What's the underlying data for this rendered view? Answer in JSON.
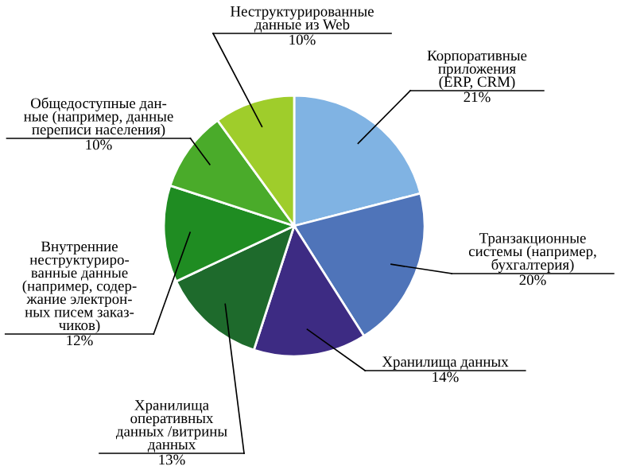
{
  "chart_data": {
    "type": "pie",
    "categories": [
      "Корпоративные\nприложения\n(ERP, CRM)",
      "Транзакционные\nсистемы (например,\nбухгалтерия)",
      "Хранилища данных",
      "Хранилища\nоперативных\nданных /витрины\nданных",
      "Внутренние\nнеструктуриро-\nванные данные\n(например, содер-\nжание электрон-\nных писем заказ-\nчиков)",
      "Общедоступные дан-\nные (например, данные\nпереписи населения)",
      "Неструктурированные\nданные из Web"
    ],
    "values": [
      21,
      20,
      14,
      13,
      12,
      10,
      10
    ],
    "value_labels": [
      "21%",
      "20%",
      "14%",
      "13%",
      "12%",
      "10%",
      "10%"
    ],
    "colors": [
      "#80b3e3",
      "#4f74b9",
      "#3d2b83",
      "#1e6a2c",
      "#1f8c22",
      "#4aab2a",
      "#9fcd2b"
    ]
  }
}
